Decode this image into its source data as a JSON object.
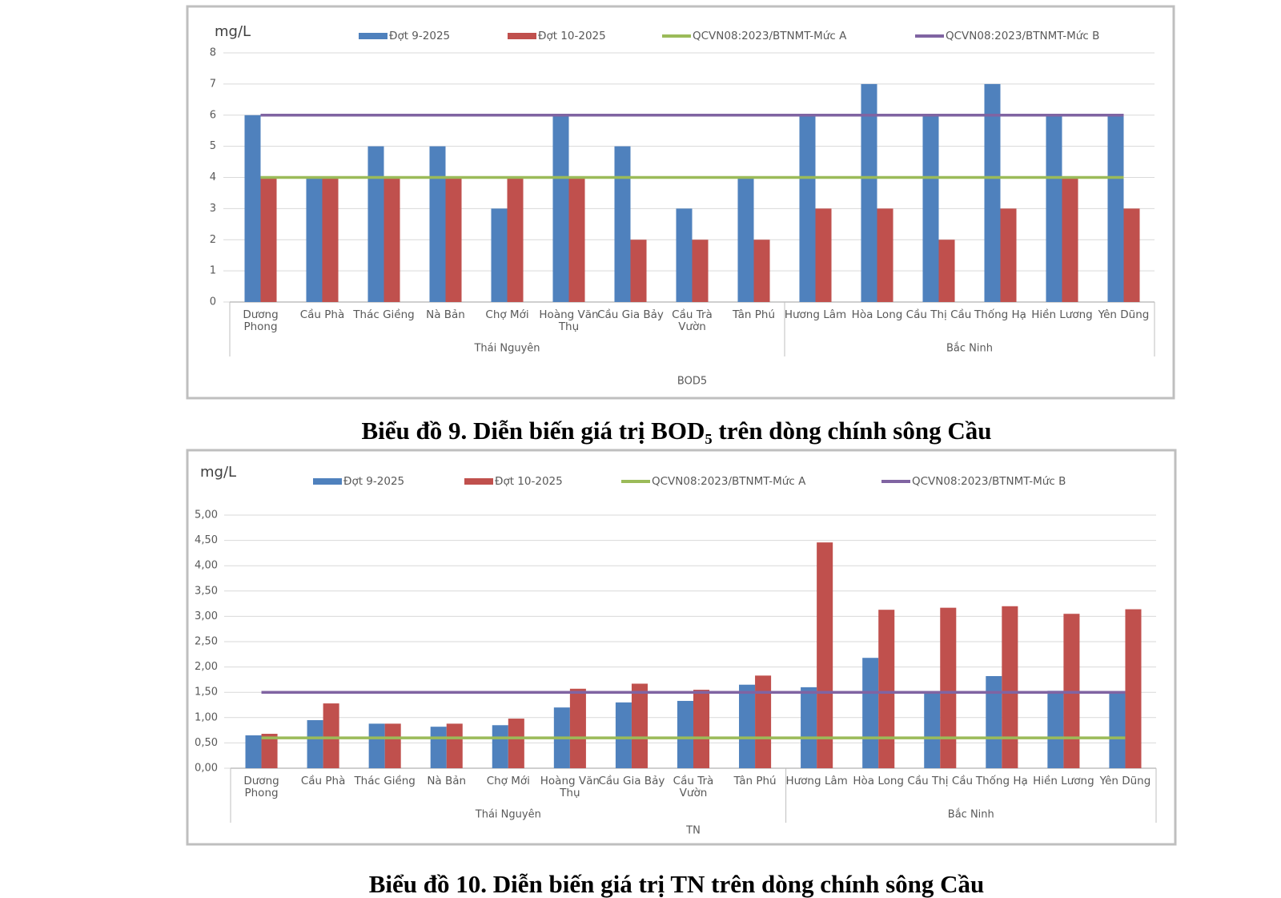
{
  "chart_data": [
    {
      "type": "bar",
      "y_unit": "mg/L",
      "x_label": "BOD5",
      "caption": "Biểu đồ 9. Diễn biến giá trị BOD₅ trên dòng chính sông Cầu",
      "categories": [
        "Dương Phong",
        "Cầu Phà",
        "Thác Giềng",
        "Nà Bản",
        "Chợ Mới",
        "Hoàng Văn Thụ",
        "Cầu Gia Bảy",
        "Cầu Trà Vườn",
        "Tân Phú",
        "Hương Lâm",
        "Hòa Long",
        "Cầu Thị Cầu",
        "Thống Hạ",
        "Hiền Lương",
        "Yên Dũng"
      ],
      "groups": [
        {
          "label": "Thái Nguyên",
          "size": 9
        },
        {
          "label": "Bắc Ninh",
          "size": 6
        }
      ],
      "series": [
        {
          "name": "Đợt 9-2025",
          "color": "#4f81bd",
          "values": [
            6,
            4,
            5,
            5,
            3,
            6,
            5,
            3,
            4,
            6,
            7,
            6,
            7,
            6,
            6
          ]
        },
        {
          "name": "Đợt 10-2025",
          "color": "#c0504d",
          "values": [
            4,
            4,
            4,
            4,
            4,
            4,
            2,
            2,
            2,
            3,
            3,
            2,
            3,
            4,
            3
          ]
        },
        {
          "name": "QCVN08:2023/BTNMT-Mức A",
          "color": "#9bbb59",
          "type": "line",
          "values": [
            4,
            4,
            4,
            4,
            4,
            4,
            4,
            4,
            4,
            4,
            4,
            4,
            4,
            4,
            4
          ]
        },
        {
          "name": "QCVN08:2023/BTNMT-Mức B",
          "color": "#8064a2",
          "type": "line",
          "values": [
            6,
            6,
            6,
            6,
            6,
            6,
            6,
            6,
            6,
            6,
            6,
            6,
            6,
            6,
            6
          ]
        }
      ],
      "ylim": [
        0,
        8
      ],
      "yticks": [
        0,
        1,
        2,
        3,
        4,
        5,
        6,
        7,
        8
      ],
      "grid": true
    },
    {
      "type": "bar",
      "y_unit": "mg/L",
      "x_label": "TN",
      "caption": "Biểu đồ 10. Diễn biến giá trị TN trên dòng chính sông Cầu",
      "categories": [
        "Dương Phong",
        "Cầu Phà",
        "Thác Giềng",
        "Nà Bản",
        "Chợ Mới",
        "Hoàng Văn Thụ",
        "Cầu Gia Bảy",
        "Cầu Trà Vườn",
        "Tân Phú",
        "Hương Lâm",
        "Hòa Long",
        "Cầu Thị Cầu",
        "Thống Hạ",
        "Hiền Lương",
        "Yên Dũng"
      ],
      "groups": [
        {
          "label": "Thái Nguyên",
          "size": 9
        },
        {
          "label": "Bắc Ninh",
          "size": 6
        }
      ],
      "series": [
        {
          "name": "Đợt 9-2025",
          "color": "#4f81bd",
          "values": [
            0.65,
            0.95,
            0.88,
            0.82,
            0.85,
            1.2,
            1.3,
            1.33,
            1.65,
            1.6,
            2.18,
            1.52,
            1.82,
            1.53,
            1.48
          ]
        },
        {
          "name": "Đợt 10-2025",
          "color": "#c0504d",
          "values": [
            0.68,
            1.28,
            0.88,
            0.88,
            0.98,
            1.57,
            1.67,
            1.55,
            1.83,
            4.46,
            3.13,
            3.17,
            3.2,
            3.05,
            3.14
          ]
        },
        {
          "name": "QCVN08:2023/BTNMT-Mức A",
          "color": "#9bbb59",
          "type": "line",
          "values": [
            0.6,
            0.6,
            0.6,
            0.6,
            0.6,
            0.6,
            0.6,
            0.6,
            0.6,
            0.6,
            0.6,
            0.6,
            0.6,
            0.6,
            0.6
          ]
        },
        {
          "name": "QCVN08:2023/BTNMT-Mức B",
          "color": "#8064a2",
          "type": "line",
          "values": [
            1.5,
            1.5,
            1.5,
            1.5,
            1.5,
            1.5,
            1.5,
            1.5,
            1.5,
            1.5,
            1.5,
            1.5,
            1.5,
            1.5,
            1.5
          ]
        }
      ],
      "ylim": [
        0,
        5
      ],
      "yticks": [
        {
          "value": 0,
          "label": "0,00"
        },
        {
          "value": 0.5,
          "label": "0,50"
        },
        {
          "value": 1,
          "label": "1,00"
        },
        {
          "value": 1.5,
          "label": "1,50"
        },
        {
          "value": 2,
          "label": "2,00"
        },
        {
          "value": 2.5,
          "label": "2,50"
        },
        {
          "value": 3,
          "label": "3,00"
        },
        {
          "value": 3.5,
          "label": "3,50"
        },
        {
          "value": 4,
          "label": "4,00"
        },
        {
          "value": 4.5,
          "label": "4,50"
        },
        {
          "value": 5,
          "label": "5,00"
        }
      ],
      "grid": true
    }
  ]
}
